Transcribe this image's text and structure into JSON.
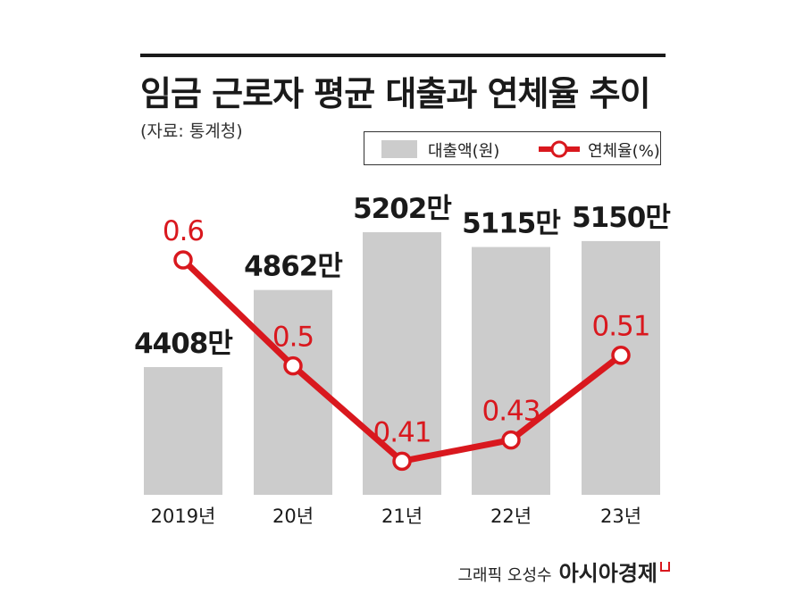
{
  "title": "임금 근로자 평균 대출과 연체율 추이",
  "source": "(자료: 통계청)",
  "legend": {
    "bar_label": "대출액(원)",
    "line_label": "연체율(%)"
  },
  "credit": {
    "graphic": "그래픽 오성수",
    "brand": "아시아경제"
  },
  "colors": {
    "bar": "#cccccc",
    "line": "#d9181e",
    "text": "#1a1a1a"
  },
  "chart_data": {
    "type": "bar",
    "categories": [
      "2019년",
      "20년",
      "21년",
      "22년",
      "23년"
    ],
    "series": [
      {
        "name": "대출액(원)",
        "type": "bar",
        "values": [
          44080000,
          48620000,
          52020000,
          51150000,
          51500000
        ],
        "labels": [
          "4408만",
          "4862만",
          "5202만",
          "5115만",
          "5150만"
        ]
      },
      {
        "name": "연체율(%)",
        "type": "line",
        "values": [
          0.6,
          0.5,
          0.41,
          0.43,
          0.51
        ],
        "labels": [
          "0.6",
          "0.5",
          "0.41",
          "0.43",
          "0.51"
        ]
      }
    ]
  }
}
